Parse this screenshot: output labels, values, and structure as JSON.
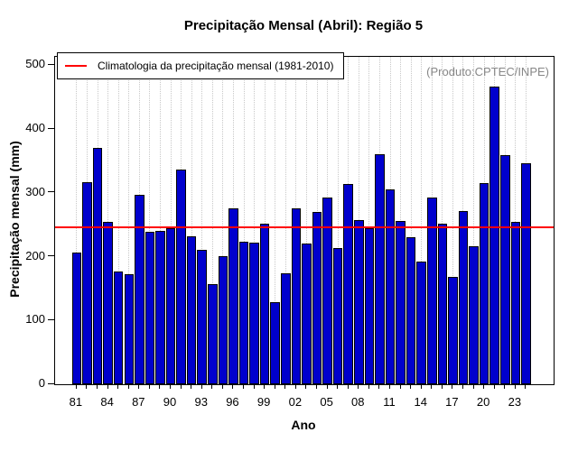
{
  "page": {
    "title": "Precipitação Mensal (Abril): Região 5"
  },
  "legend": {
    "label": "Climatologia da precipitação mensal (1981-2010)"
  },
  "watermark": "(Produto:CPTEC/INPE)",
  "chart_data": {
    "type": "bar",
    "title": "Precipitação Mensal (Abril): Região 5",
    "xlabel": "Ano",
    "ylabel": "Precipitação mensal (mm)",
    "ylim": [
      0,
      500
    ],
    "yticks": [
      0,
      100,
      200,
      300,
      400,
      500
    ],
    "categories": [
      "81",
      "82",
      "83",
      "84",
      "85",
      "86",
      "87",
      "88",
      "89",
      "90",
      "91",
      "92",
      "93",
      "94",
      "95",
      "96",
      "97",
      "98",
      "99",
      "00",
      "01",
      "02",
      "03",
      "04",
      "05",
      "06",
      "07",
      "08",
      "09",
      "10",
      "11",
      "12",
      "13",
      "14",
      "15",
      "16",
      "17",
      "18",
      "19",
      "20",
      "21",
      "22",
      "23",
      "24"
    ],
    "values": [
      206,
      317,
      371,
      255,
      177,
      173,
      297,
      239,
      241,
      245,
      337,
      232,
      210,
      157,
      201,
      276,
      224,
      222,
      252,
      128,
      174,
      276,
      221,
      270,
      293,
      214,
      314,
      258,
      244,
      361,
      305,
      256,
      230,
      193,
      292,
      251,
      168,
      272,
      217,
      315,
      467,
      359,
      254,
      347
    ],
    "xtick_label_every": 3,
    "climatology_line": {
      "value": 246,
      "color": "#ff0000",
      "label": "Climatologia da precipitação mensal (1981-2010)"
    },
    "bar_color": "#0000cd",
    "bar_border_color": "#000000",
    "grid": {
      "vertical": "dotted",
      "color": "#c8c8c8"
    },
    "legend_position": "topleft",
    "annotation": "(Produto:CPTEC/INPE)"
  }
}
